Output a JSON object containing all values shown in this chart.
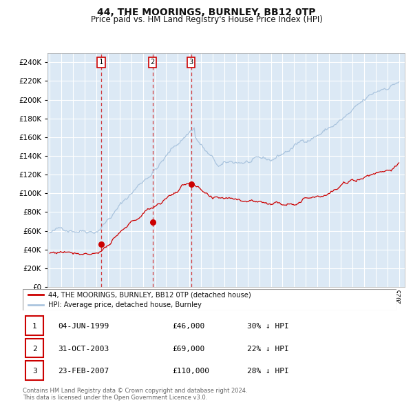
{
  "title": "44, THE MOORINGS, BURNLEY, BB12 0TP",
  "subtitle": "Price paid vs. HM Land Registry's House Price Index (HPI)",
  "title_fontsize": 10,
  "subtitle_fontsize": 8.5,
  "legend_line1": "44, THE MOORINGS, BURNLEY, BB12 0TP (detached house)",
  "legend_line2": "HPI: Average price, detached house, Burnley",
  "footer1": "Contains HM Land Registry data © Crown copyright and database right 2024.",
  "footer2": "This data is licensed under the Open Government Licence v3.0.",
  "sales": [
    {
      "num": 1,
      "date_label": "04-JUN-1999",
      "price_label": "£46,000",
      "hpi_label": "30% ↓ HPI",
      "year": 1999.42,
      "price": 46000
    },
    {
      "num": 2,
      "date_label": "31-OCT-2003",
      "price_label": "£69,000",
      "hpi_label": "22% ↓ HPI",
      "year": 2003.83,
      "price": 69000
    },
    {
      "num": 3,
      "date_label": "23-FEB-2007",
      "price_label": "£110,000",
      "hpi_label": "28% ↓ HPI",
      "year": 2007.14,
      "price": 110000
    }
  ],
  "hpi_color": "#aac4de",
  "sale_color": "#cc0000",
  "plot_bg": "#dce9f5",
  "grid_color": "#ffffff",
  "ylim": [
    0,
    250000
  ],
  "yticks": [
    0,
    20000,
    40000,
    60000,
    80000,
    100000,
    120000,
    140000,
    160000,
    180000,
    200000,
    220000,
    240000
  ],
  "xlim_start": 1994.8,
  "xlim_end": 2025.5
}
